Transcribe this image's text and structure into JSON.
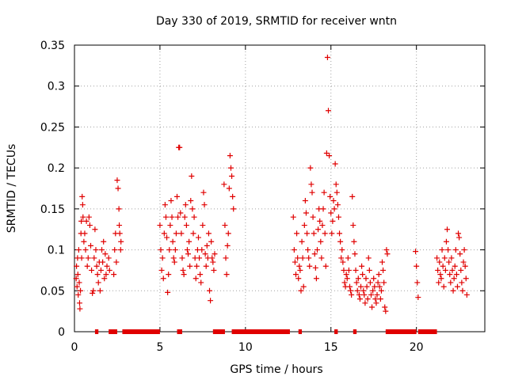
{
  "colors": {
    "series": "#e00000",
    "grid": "#a0a0a0",
    "axis": "#000000"
  },
  "chart_data": {
    "type": "scatter",
    "title": "Day 330 of 2019, SRMTID for receiver wntn",
    "xlabel": "GPS time / hours",
    "ylabel": "SRMTID / TECUs",
    "xlim": [
      0,
      24
    ],
    "ylim": [
      0,
      0.35
    ],
    "grid": true,
    "marker": "+",
    "xticks": [
      {
        "v": 0,
        "label": "0"
      },
      {
        "v": 5,
        "label": "5"
      },
      {
        "v": 10,
        "label": "10"
      },
      {
        "v": 15,
        "label": "15"
      },
      {
        "v": 20,
        "label": "20"
      }
    ],
    "yticks": [
      {
        "v": 0,
        "label": "0"
      },
      {
        "v": 0.05,
        "label": "0.05"
      },
      {
        "v": 0.1,
        "label": "0.1"
      },
      {
        "v": 0.15,
        "label": "0.15"
      },
      {
        "v": 0.2,
        "label": "0.2"
      },
      {
        "v": 0.25,
        "label": "0.25"
      },
      {
        "v": 0.3,
        "label": "0.3"
      },
      {
        "v": 0.35,
        "label": "0.35"
      }
    ],
    "zero_intervals_hours": [
      [
        1.2,
        1.4
      ],
      [
        2.0,
        2.5
      ],
      [
        2.8,
        5.0
      ],
      [
        6.0,
        6.3
      ],
      [
        8.1,
        8.8
      ],
      [
        9.2,
        12.6
      ],
      [
        13.1,
        13.3
      ],
      [
        15.2,
        15.4
      ],
      [
        16.3,
        16.5
      ],
      [
        18.2,
        20.0
      ],
      [
        20.1,
        21.2
      ]
    ],
    "points": [
      [
        0.1,
        0.065
      ],
      [
        0.12,
        0.08
      ],
      [
        0.15,
        0.055
      ],
      [
        0.18,
        0.09
      ],
      [
        0.2,
        0.07
      ],
      [
        0.22,
        0.045
      ],
      [
        0.25,
        0.1
      ],
      [
        0.28,
        0.06
      ],
      [
        0.3,
        0.035
      ],
      [
        0.32,
        0.028
      ],
      [
        0.35,
        0.05
      ],
      [
        0.38,
        0.12
      ],
      [
        0.4,
        0.135
      ],
      [
        0.42,
        0.09
      ],
      [
        0.45,
        0.165
      ],
      [
        0.48,
        0.155
      ],
      [
        0.5,
        0.14
      ],
      [
        0.55,
        0.11
      ],
      [
        0.6,
        0.12
      ],
      [
        0.65,
        0.1
      ],
      [
        0.7,
        0.135
      ],
      [
        0.75,
        0.08
      ],
      [
        0.8,
        0.09
      ],
      [
        0.85,
        0.14
      ],
      [
        0.9,
        0.13
      ],
      [
        0.95,
        0.105
      ],
      [
        1.0,
        0.075
      ],
      [
        1.05,
        0.047
      ],
      [
        1.1,
        0.05
      ],
      [
        1.15,
        0.09
      ],
      [
        1.2,
        0.125
      ],
      [
        1.25,
        0.1
      ],
      [
        1.3,
        0.08
      ],
      [
        1.35,
        0.07
      ],
      [
        1.4,
        0.06
      ],
      [
        1.45,
        0.085
      ],
      [
        1.5,
        0.05
      ],
      [
        1.55,
        0.075
      ],
      [
        1.6,
        0.1
      ],
      [
        1.65,
        0.085
      ],
      [
        1.7,
        0.11
      ],
      [
        1.75,
        0.065
      ],
      [
        1.8,
        0.095
      ],
      [
        1.85,
        0.07
      ],
      [
        1.9,
        0.08
      ],
      [
        2.0,
        0.09
      ],
      [
        2.05,
        0.075
      ],
      [
        2.3,
        0.07
      ],
      [
        2.35,
        0.1
      ],
      [
        2.4,
        0.12
      ],
      [
        2.45,
        0.085
      ],
      [
        2.5,
        0.185
      ],
      [
        2.55,
        0.175
      ],
      [
        2.6,
        0.15
      ],
      [
        2.62,
        0.13
      ],
      [
        2.65,
        0.12
      ],
      [
        2.7,
        0.1
      ],
      [
        2.72,
        0.11
      ],
      [
        5.0,
        0.13
      ],
      [
        5.05,
        0.1
      ],
      [
        5.1,
        0.075
      ],
      [
        5.15,
        0.09
      ],
      [
        5.2,
        0.065
      ],
      [
        5.25,
        0.12
      ],
      [
        5.3,
        0.155
      ],
      [
        5.35,
        0.14
      ],
      [
        5.4,
        0.115
      ],
      [
        5.45,
        0.048
      ],
      [
        5.5,
        0.07
      ],
      [
        5.55,
        0.1
      ],
      [
        5.6,
        0.13
      ],
      [
        5.65,
        0.16
      ],
      [
        5.7,
        0.14
      ],
      [
        5.75,
        0.11
      ],
      [
        5.8,
        0.09
      ],
      [
        5.85,
        0.085
      ],
      [
        5.9,
        0.1
      ],
      [
        5.95,
        0.12
      ],
      [
        6.0,
        0.165
      ],
      [
        6.05,
        0.14
      ],
      [
        6.1,
        0.225
      ],
      [
        6.15,
        0.225
      ],
      [
        6.2,
        0.145
      ],
      [
        6.25,
        0.12
      ],
      [
        6.3,
        0.09
      ],
      [
        6.35,
        0.075
      ],
      [
        6.4,
        0.07
      ],
      [
        6.45,
        0.14
      ],
      [
        6.5,
        0.155
      ],
      [
        6.55,
        0.13
      ],
      [
        6.6,
        0.1
      ],
      [
        6.65,
        0.095
      ],
      [
        6.7,
        0.11
      ],
      [
        6.75,
        0.08
      ],
      [
        6.8,
        0.16
      ],
      [
        6.85,
        0.19
      ],
      [
        6.9,
        0.15
      ],
      [
        6.95,
        0.12
      ],
      [
        7.0,
        0.14
      ],
      [
        7.05,
        0.09
      ],
      [
        7.1,
        0.065
      ],
      [
        7.15,
        0.08
      ],
      [
        7.2,
        0.1
      ],
      [
        7.25,
        0.115
      ],
      [
        7.3,
        0.09
      ],
      [
        7.35,
        0.07
      ],
      [
        7.4,
        0.06
      ],
      [
        7.45,
        0.1
      ],
      [
        7.5,
        0.13
      ],
      [
        7.55,
        0.17
      ],
      [
        7.6,
        0.155
      ],
      [
        7.65,
        0.095
      ],
      [
        7.7,
        0.08
      ],
      [
        7.75,
        0.105
      ],
      [
        7.8,
        0.09
      ],
      [
        7.85,
        0.12
      ],
      [
        7.9,
        0.05
      ],
      [
        7.95,
        0.038
      ],
      [
        8.0,
        0.11
      ],
      [
        8.05,
        0.09
      ],
      [
        8.1,
        0.085
      ],
      [
        8.15,
        0.075
      ],
      [
        8.2,
        0.095
      ],
      [
        8.75,
        0.18
      ],
      [
        8.8,
        0.13
      ],
      [
        8.85,
        0.09
      ],
      [
        8.9,
        0.07
      ],
      [
        8.95,
        0.105
      ],
      [
        9.0,
        0.12
      ],
      [
        9.05,
        0.175
      ],
      [
        9.1,
        0.215
      ],
      [
        9.15,
        0.2
      ],
      [
        9.2,
        0.19
      ],
      [
        9.25,
        0.165
      ],
      [
        9.3,
        0.15
      ],
      [
        12.8,
        0.14
      ],
      [
        12.85,
        0.1
      ],
      [
        12.9,
        0.085
      ],
      [
        12.95,
        0.07
      ],
      [
        13.0,
        0.12
      ],
      [
        13.05,
        0.09
      ],
      [
        13.1,
        0.065
      ],
      [
        13.15,
        0.08
      ],
      [
        13.2,
        0.075
      ],
      [
        13.25,
        0.05
      ],
      [
        13.3,
        0.11
      ],
      [
        13.35,
        0.09
      ],
      [
        13.4,
        0.055
      ],
      [
        13.45,
        0.13
      ],
      [
        13.5,
        0.16
      ],
      [
        13.55,
        0.145
      ],
      [
        13.6,
        0.12
      ],
      [
        13.65,
        0.1
      ],
      [
        13.7,
        0.09
      ],
      [
        13.75,
        0.08
      ],
      [
        13.8,
        0.2
      ],
      [
        13.85,
        0.18
      ],
      [
        13.9,
        0.17
      ],
      [
        13.95,
        0.14
      ],
      [
        14.0,
        0.12
      ],
      [
        14.05,
        0.095
      ],
      [
        14.1,
        0.078
      ],
      [
        14.15,
        0.065
      ],
      [
        14.2,
        0.1
      ],
      [
        14.25,
        0.125
      ],
      [
        14.3,
        0.15
      ],
      [
        14.35,
        0.135
      ],
      [
        14.4,
        0.11
      ],
      [
        14.45,
        0.09
      ],
      [
        14.5,
        0.13
      ],
      [
        14.55,
        0.15
      ],
      [
        14.6,
        0.17
      ],
      [
        14.65,
        0.12
      ],
      [
        14.7,
        0.08
      ],
      [
        14.75,
        0.218
      ],
      [
        14.8,
        0.335
      ],
      [
        14.85,
        0.27
      ],
      [
        14.9,
        0.215
      ],
      [
        14.95,
        0.165
      ],
      [
        15.0,
        0.145
      ],
      [
        15.05,
        0.12
      ],
      [
        15.1,
        0.135
      ],
      [
        15.15,
        0.16
      ],
      [
        15.2,
        0.15
      ],
      [
        15.25,
        0.205
      ],
      [
        15.3,
        0.18
      ],
      [
        15.35,
        0.17
      ],
      [
        15.4,
        0.155
      ],
      [
        15.45,
        0.14
      ],
      [
        15.5,
        0.12
      ],
      [
        15.55,
        0.11
      ],
      [
        15.6,
        0.09
      ],
      [
        15.65,
        0.1
      ],
      [
        15.7,
        0.085
      ],
      [
        15.75,
        0.075
      ],
      [
        15.8,
        0.06
      ],
      [
        15.85,
        0.055
      ],
      [
        15.9,
        0.07
      ],
      [
        15.95,
        0.065
      ],
      [
        16.0,
        0.09
      ],
      [
        16.05,
        0.075
      ],
      [
        16.1,
        0.055
      ],
      [
        16.15,
        0.05
      ],
      [
        16.2,
        0.045
      ],
      [
        16.25,
        0.165
      ],
      [
        16.3,
        0.13
      ],
      [
        16.35,
        0.11
      ],
      [
        16.4,
        0.095
      ],
      [
        16.45,
        0.075
      ],
      [
        16.5,
        0.06
      ],
      [
        16.55,
        0.05
      ],
      [
        16.6,
        0.065
      ],
      [
        16.65,
        0.045
      ],
      [
        16.7,
        0.04
      ],
      [
        16.75,
        0.055
      ],
      [
        16.8,
        0.08
      ],
      [
        16.85,
        0.07
      ],
      [
        16.9,
        0.05
      ],
      [
        16.95,
        0.045
      ],
      [
        17.0,
        0.035
      ],
      [
        17.05,
        0.065
      ],
      [
        17.1,
        0.055
      ],
      [
        17.15,
        0.04
      ],
      [
        17.2,
        0.09
      ],
      [
        17.25,
        0.075
      ],
      [
        17.3,
        0.06
      ],
      [
        17.35,
        0.045
      ],
      [
        17.4,
        0.03
      ],
      [
        17.45,
        0.05
      ],
      [
        17.5,
        0.065
      ],
      [
        17.55,
        0.055
      ],
      [
        17.6,
        0.04
      ],
      [
        17.65,
        0.035
      ],
      [
        17.7,
        0.045
      ],
      [
        17.75,
        0.06
      ],
      [
        17.8,
        0.07
      ],
      [
        17.85,
        0.055
      ],
      [
        17.9,
        0.04
      ],
      [
        17.95,
        0.05
      ],
      [
        18.0,
        0.085
      ],
      [
        18.05,
        0.075
      ],
      [
        18.1,
        0.06
      ],
      [
        18.15,
        0.03
      ],
      [
        18.2,
        0.025
      ],
      [
        18.25,
        0.1
      ],
      [
        18.3,
        0.095
      ],
      [
        19.95,
        0.098
      ],
      [
        20.0,
        0.08
      ],
      [
        20.05,
        0.06
      ],
      [
        20.1,
        0.042
      ],
      [
        21.2,
        0.09
      ],
      [
        21.25,
        0.075
      ],
      [
        21.3,
        0.06
      ],
      [
        21.35,
        0.085
      ],
      [
        21.4,
        0.07
      ],
      [
        21.45,
        0.065
      ],
      [
        21.5,
        0.1
      ],
      [
        21.55,
        0.08
      ],
      [
        21.6,
        0.055
      ],
      [
        21.65,
        0.09
      ],
      [
        21.7,
        0.075
      ],
      [
        21.75,
        0.11
      ],
      [
        21.8,
        0.125
      ],
      [
        21.85,
        0.1
      ],
      [
        21.9,
        0.085
      ],
      [
        21.95,
        0.07
      ],
      [
        22.0,
        0.06
      ],
      [
        22.05,
        0.09
      ],
      [
        22.1,
        0.075
      ],
      [
        22.15,
        0.05
      ],
      [
        22.2,
        0.065
      ],
      [
        22.25,
        0.08
      ],
      [
        22.3,
        0.1
      ],
      [
        22.35,
        0.07
      ],
      [
        22.4,
        0.055
      ],
      [
        22.45,
        0.12
      ],
      [
        22.5,
        0.115
      ],
      [
        22.55,
        0.095
      ],
      [
        22.6,
        0.075
      ],
      [
        22.65,
        0.06
      ],
      [
        22.7,
        0.05
      ],
      [
        22.75,
        0.085
      ],
      [
        22.8,
        0.1
      ],
      [
        22.85,
        0.08
      ],
      [
        22.9,
        0.065
      ],
      [
        22.95,
        0.045
      ]
    ]
  }
}
